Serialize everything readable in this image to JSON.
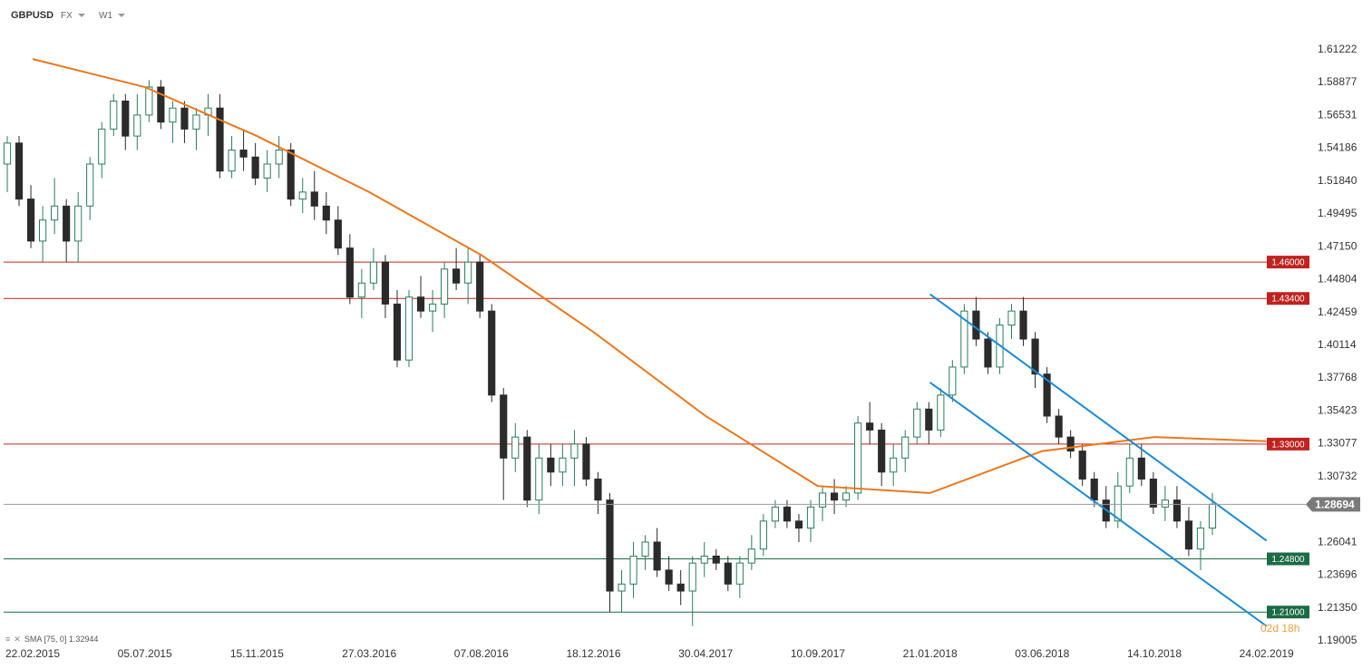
{
  "toolbar": {
    "symbol": "GBPUSD",
    "market": "FX",
    "interval": "W1"
  },
  "legend": {
    "indicator": "SMA",
    "params": "[75, 0]",
    "value": "1.32944"
  },
  "timer": "02d 18h",
  "colors": {
    "up_body": "#ffffff",
    "up_border": "#2a7d5a",
    "down": "#2b2b2b",
    "sma": "#e8781e",
    "resistance": "#c0231f",
    "support": "#1b6b45",
    "channel": "#1b8ad3",
    "price_line": "#9a9a9a",
    "price_tag": "#7a7a7a"
  },
  "chart_data": {
    "type": "candlestick",
    "y_ticks": [
      "1.61222",
      "1.58877",
      "1.56531",
      "1.54186",
      "1.51840",
      "1.49495",
      "1.47150",
      "1.44804",
      "1.42459",
      "1.40114",
      "1.37768",
      "1.35423",
      "1.33077",
      "1.30732",
      "1.26041",
      "1.23696",
      "1.21350",
      "1.19005"
    ],
    "x_ticks": [
      "22.02.2015",
      "05.07.2015",
      "15.11.2015",
      "27.03.2016",
      "07.08.2016",
      "18.12.2016",
      "30.04.2017",
      "10.09.2017",
      "21.01.2018",
      "03.06.2018",
      "14.10.2018",
      "24.02.2019"
    ],
    "ylim": [
      1.19005,
      1.61222
    ],
    "current_price": "1.28694",
    "levels": [
      {
        "label": "1.46000",
        "value": 1.46,
        "kind": "resistance"
      },
      {
        "label": "1.43400",
        "value": 1.434,
        "kind": "resistance"
      },
      {
        "label": "1.33000",
        "value": 1.33,
        "kind": "resistance"
      },
      {
        "label": "1.24800",
        "value": 1.248,
        "kind": "support"
      },
      {
        "label": "1.21000",
        "value": 1.21,
        "kind": "support"
      }
    ],
    "series": [
      {
        "name": "SMA [75, 0]",
        "type": "line",
        "points": [
          [
            "22.02.2015",
            1.605
          ],
          [
            "05.07.2015",
            1.585
          ],
          [
            "15.11.2015",
            1.55
          ],
          [
            "27.03.2016",
            1.51
          ],
          [
            "07.08.2016",
            1.465
          ],
          [
            "18.12.2016",
            1.41
          ],
          [
            "30.04.2017",
            1.35
          ],
          [
            "10.09.2017",
            1.3
          ],
          [
            "21.01.2018",
            1.295
          ],
          [
            "03.06.2018",
            1.325
          ],
          [
            "14.10.2018",
            1.335
          ],
          [
            "24.02.2019",
            1.332
          ]
        ]
      }
    ],
    "channel": {
      "upper": [
        [
          "21.01.2018",
          1.437
        ],
        [
          "24.02.2019",
          1.261
        ]
      ],
      "lower": [
        [
          "21.01.2018",
          1.374
        ],
        [
          "24.02.2019",
          1.2
        ]
      ]
    },
    "candles": [
      [
        1.53,
        1.55,
        1.51,
        1.545
      ],
      [
        1.545,
        1.55,
        1.5,
        1.505
      ],
      [
        1.505,
        1.515,
        1.47,
        1.475
      ],
      [
        1.475,
        1.5,
        1.46,
        1.49
      ],
      [
        1.49,
        1.52,
        1.48,
        1.5
      ],
      [
        1.5,
        1.505,
        1.46,
        1.475
      ],
      [
        1.475,
        1.51,
        1.46,
        1.5
      ],
      [
        1.5,
        1.535,
        1.49,
        1.53
      ],
      [
        1.53,
        1.56,
        1.52,
        1.555
      ],
      [
        1.555,
        1.58,
        1.55,
        1.575
      ],
      [
        1.575,
        1.58,
        1.54,
        1.55
      ],
      [
        1.55,
        1.58,
        1.54,
        1.565
      ],
      [
        1.565,
        1.59,
        1.56,
        1.585
      ],
      [
        1.585,
        1.59,
        1.555,
        1.56
      ],
      [
        1.56,
        1.575,
        1.545,
        1.57
      ],
      [
        1.57,
        1.575,
        1.545,
        1.555
      ],
      [
        1.555,
        1.57,
        1.54,
        1.565
      ],
      [
        1.565,
        1.58,
        1.55,
        1.57
      ],
      [
        1.57,
        1.58,
        1.52,
        1.525
      ],
      [
        1.525,
        1.55,
        1.52,
        1.54
      ],
      [
        1.54,
        1.555,
        1.525,
        1.535
      ],
      [
        1.535,
        1.545,
        1.515,
        1.52
      ],
      [
        1.52,
        1.54,
        1.51,
        1.53
      ],
      [
        1.53,
        1.55,
        1.52,
        1.54
      ],
      [
        1.54,
        1.545,
        1.5,
        1.505
      ],
      [
        1.505,
        1.52,
        1.495,
        1.51
      ],
      [
        1.51,
        1.525,
        1.49,
        1.5
      ],
      [
        1.5,
        1.51,
        1.48,
        1.49
      ],
      [
        1.49,
        1.5,
        1.465,
        1.47
      ],
      [
        1.47,
        1.48,
        1.43,
        1.435
      ],
      [
        1.435,
        1.455,
        1.42,
        1.445
      ],
      [
        1.445,
        1.47,
        1.44,
        1.46
      ],
      [
        1.46,
        1.465,
        1.42,
        1.43
      ],
      [
        1.43,
        1.44,
        1.385,
        1.39
      ],
      [
        1.39,
        1.44,
        1.385,
        1.435
      ],
      [
        1.435,
        1.45,
        1.42,
        1.425
      ],
      [
        1.425,
        1.44,
        1.41,
        1.43
      ],
      [
        1.43,
        1.46,
        1.42,
        1.455
      ],
      [
        1.455,
        1.47,
        1.44,
        1.445
      ],
      [
        1.445,
        1.47,
        1.43,
        1.46
      ],
      [
        1.46,
        1.465,
        1.42,
        1.425
      ],
      [
        1.425,
        1.43,
        1.36,
        1.365
      ],
      [
        1.365,
        1.37,
        1.29,
        1.32
      ],
      [
        1.32,
        1.345,
        1.31,
        1.335
      ],
      [
        1.335,
        1.34,
        1.285,
        1.29
      ],
      [
        1.29,
        1.33,
        1.28,
        1.32
      ],
      [
        1.32,
        1.33,
        1.3,
        1.31
      ],
      [
        1.31,
        1.33,
        1.3,
        1.32
      ],
      [
        1.32,
        1.34,
        1.3,
        1.33
      ],
      [
        1.33,
        1.335,
        1.3,
        1.305
      ],
      [
        1.305,
        1.31,
        1.28,
        1.29
      ],
      [
        1.29,
        1.295,
        1.21,
        1.225
      ],
      [
        1.225,
        1.24,
        1.21,
        1.23
      ],
      [
        1.23,
        1.26,
        1.22,
        1.25
      ],
      [
        1.25,
        1.265,
        1.24,
        1.26
      ],
      [
        1.26,
        1.27,
        1.235,
        1.24
      ],
      [
        1.24,
        1.25,
        1.225,
        1.23
      ],
      [
        1.23,
        1.24,
        1.215,
        1.225
      ],
      [
        1.225,
        1.25,
        1.2,
        1.245
      ],
      [
        1.245,
        1.26,
        1.235,
        1.25
      ],
      [
        1.25,
        1.255,
        1.24,
        1.245
      ],
      [
        1.245,
        1.25,
        1.225,
        1.23
      ],
      [
        1.23,
        1.25,
        1.22,
        1.245
      ],
      [
        1.245,
        1.265,
        1.24,
        1.255
      ],
      [
        1.255,
        1.28,
        1.25,
        1.275
      ],
      [
        1.275,
        1.29,
        1.27,
        1.285
      ],
      [
        1.285,
        1.29,
        1.27,
        1.275
      ],
      [
        1.275,
        1.28,
        1.26,
        1.27
      ],
      [
        1.27,
        1.29,
        1.26,
        1.285
      ],
      [
        1.285,
        1.3,
        1.275,
        1.295
      ],
      [
        1.295,
        1.305,
        1.28,
        1.29
      ],
      [
        1.29,
        1.3,
        1.285,
        1.295
      ],
      [
        1.295,
        1.35,
        1.29,
        1.345
      ],
      [
        1.345,
        1.36,
        1.33,
        1.34
      ],
      [
        1.34,
        1.345,
        1.3,
        1.31
      ],
      [
        1.31,
        1.33,
        1.3,
        1.32
      ],
      [
        1.32,
        1.34,
        1.31,
        1.335
      ],
      [
        1.335,
        1.36,
        1.33,
        1.355
      ],
      [
        1.355,
        1.36,
        1.33,
        1.34
      ],
      [
        1.34,
        1.37,
        1.335,
        1.365
      ],
      [
        1.365,
        1.39,
        1.36,
        1.385
      ],
      [
        1.385,
        1.43,
        1.38,
        1.425
      ],
      [
        1.425,
        1.435,
        1.4,
        1.405
      ],
      [
        1.405,
        1.41,
        1.38,
        1.385
      ],
      [
        1.385,
        1.42,
        1.38,
        1.415
      ],
      [
        1.415,
        1.43,
        1.405,
        1.425
      ],
      [
        1.425,
        1.435,
        1.4,
        1.405
      ],
      [
        1.405,
        1.41,
        1.37,
        1.38
      ],
      [
        1.38,
        1.385,
        1.345,
        1.35
      ],
      [
        1.35,
        1.355,
        1.33,
        1.335
      ],
      [
        1.335,
        1.34,
        1.32,
        1.325
      ],
      [
        1.325,
        1.33,
        1.3,
        1.305
      ],
      [
        1.305,
        1.31,
        1.285,
        1.29
      ],
      [
        1.29,
        1.3,
        1.27,
        1.275
      ],
      [
        1.275,
        1.31,
        1.27,
        1.3
      ],
      [
        1.3,
        1.33,
        1.295,
        1.32
      ],
      [
        1.32,
        1.33,
        1.3,
        1.305
      ],
      [
        1.305,
        1.31,
        1.28,
        1.285
      ],
      [
        1.285,
        1.3,
        1.275,
        1.29
      ],
      [
        1.29,
        1.3,
        1.27,
        1.275
      ],
      [
        1.275,
        1.285,
        1.25,
        1.255
      ],
      [
        1.255,
        1.275,
        1.24,
        1.27
      ],
      [
        1.27,
        1.295,
        1.265,
        1.287
      ]
    ]
  }
}
